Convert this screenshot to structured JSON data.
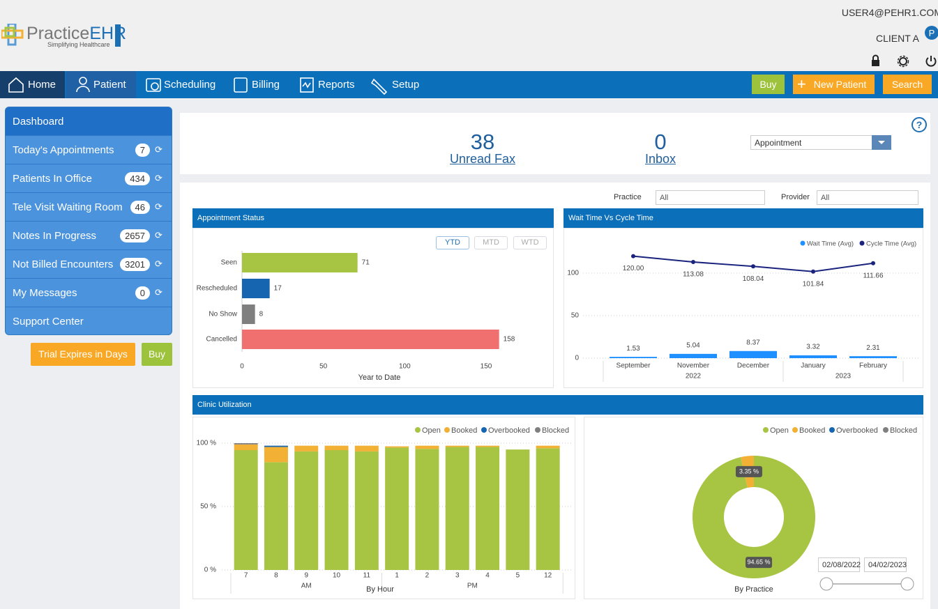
{
  "header": {
    "logo_a": "Practice",
    "logo_b": "EHR",
    "tagline": "Simplifying Healthcare",
    "user": "USER4@PEHR1.COM",
    "client": "CLIENT A"
  },
  "nav": {
    "items": [
      "Home",
      "Patient",
      "Scheduling",
      "Billing",
      "Reports",
      "Setup"
    ],
    "buy": "Buy",
    "new_patient": "New Patient",
    "search": "Search"
  },
  "sidebar": {
    "title": "Dashboard",
    "items": [
      {
        "label": "Today's Appointments",
        "count": 7
      },
      {
        "label": "Patients In Office",
        "count": 434
      },
      {
        "label": "Tele Visit Waiting Room",
        "count": 46
      },
      {
        "label": "Notes In Progress",
        "count": 2657
      },
      {
        "label": "Not Billed Encounters",
        "count": 3201
      },
      {
        "label": "My Messages",
        "count": 0
      }
    ],
    "support": "Support Center",
    "trial": "Trial Expires in Days",
    "buy": "Buy"
  },
  "summary": {
    "fax_count": 38,
    "fax_label": "Unread Fax",
    "inbox_count": 0,
    "inbox_label": "Inbox",
    "dropdown": "Appointment"
  },
  "filters": {
    "practice_label": "Practice",
    "practice_value": "All",
    "provider_label": "Provider",
    "provider_value": "All"
  },
  "utilization_title": "Clinic Utilization",
  "chart_data": [
    {
      "type": "bar",
      "orientation": "horizontal",
      "title": "Appointment Status",
      "periods": [
        "YTD",
        "MTD",
        "WTD"
      ],
      "categories": [
        "Seen",
        "Rescheduled",
        "No Show",
        "Cancelled"
      ],
      "values": [
        71,
        17,
        8,
        158
      ],
      "colors": [
        "#a8c443",
        "#1565b0",
        "#7f7f7f",
        "#f07070"
      ],
      "xlim": [
        0,
        180
      ],
      "xticks": [
        0,
        50,
        100,
        150
      ],
      "xlabel": "Year to Date"
    },
    {
      "type": "combo",
      "title": "Wait Time Vs Cycle Time",
      "categories": [
        "September",
        "November",
        "December",
        "January",
        "February"
      ],
      "groups": [
        "2022",
        "2023"
      ],
      "ylim": [
        0,
        125
      ],
      "yticks": [
        0,
        50,
        100
      ],
      "grid": true,
      "series": [
        {
          "name": "Wait Time (Avg)",
          "type": "bar",
          "color": "#1e90ff",
          "values": [
            1.53,
            5.04,
            8.37,
            3.32,
            2.31
          ]
        },
        {
          "name": "Cycle Time (Avg)",
          "type": "line",
          "color": "#1a237e",
          "values": [
            120,
            113.08,
            108.04,
            101.84,
            111.66
          ],
          "value_labels": [
            "120.00",
            "113.08",
            "108.04",
            "101.84",
            "111.66"
          ]
        }
      ]
    },
    {
      "type": "stacked_bar",
      "categories": [
        "7",
        "8",
        "9",
        "10",
        "11",
        "1",
        "2",
        "3",
        "4",
        "5",
        "12"
      ],
      "groups": [
        "AM",
        "PM"
      ],
      "ylim": [
        0,
        100
      ],
      "yticks": [
        {
          "value": 0,
          "label": "0 %"
        },
        {
          "value": 50,
          "label": "50 %"
        },
        {
          "value": 100,
          "label": "100 %"
        }
      ],
      "grid": true,
      "xlabel": "By Hour",
      "series": [
        {
          "name": "Open",
          "color": "#a8c443",
          "values": [
            94.5,
            85,
            93.5,
            94.5,
            93.5,
            96.5,
            95.5,
            97,
            97,
            95,
            96
          ]
        },
        {
          "name": "Booked",
          "color": "#f2b134",
          "values": [
            4.5,
            12,
            4.5,
            3.5,
            4.5,
            1,
            2.5,
            1,
            1,
            0,
            2
          ]
        },
        {
          "name": "Overbooked",
          "color": "#1565b0",
          "values": [
            0,
            1,
            0,
            0,
            0,
            0,
            0,
            0,
            0,
            0,
            0
          ]
        },
        {
          "name": "Blocked",
          "color": "#7f7f7f",
          "values": [
            1,
            0,
            0,
            0,
            0,
            0,
            0,
            0,
            0,
            0,
            0
          ]
        }
      ]
    },
    {
      "type": "donut",
      "categories": [
        "Open",
        "Booked",
        "Overbooked",
        "Blocked"
      ],
      "values": [
        94.65,
        3.35,
        null,
        null
      ],
      "value_labels": [
        "94.65 %",
        "3.35 %",
        null,
        null
      ],
      "colors": [
        "#a8c443",
        "#f2b134",
        "#1565b0",
        "#7f7f7f"
      ],
      "xlabel": "By Practice",
      "date_range": [
        "02/08/2022",
        "04/02/2023"
      ]
    }
  ]
}
